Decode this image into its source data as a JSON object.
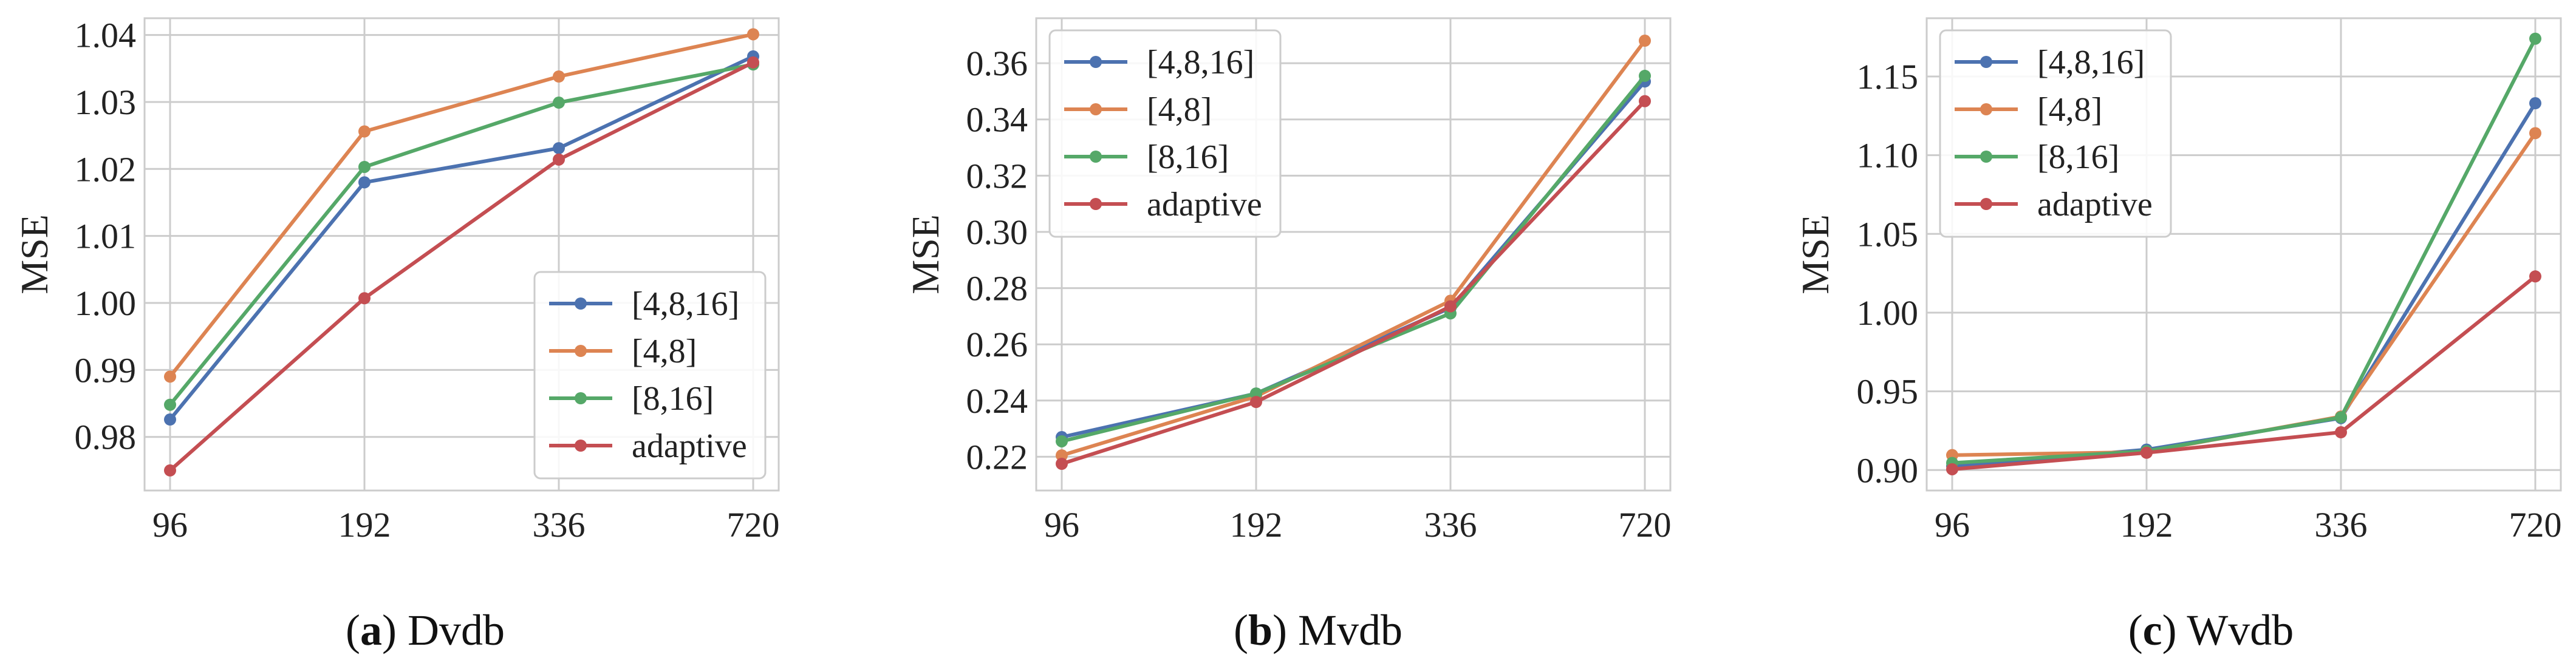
{
  "chart_data": [
    {
      "type": "line",
      "caption_letter": "a",
      "caption_name": "Dvdb",
      "ylabel": "MSE",
      "categories": [
        "96",
        "192",
        "336",
        "720"
      ],
      "ylim": [
        0.972,
        1.0425
      ],
      "yticks": [
        0.98,
        0.99,
        1.0,
        1.01,
        1.02,
        1.03,
        1.04
      ],
      "ytick_labels": [
        "0.98",
        "0.99",
        "1.00",
        "1.01",
        "1.02",
        "1.03",
        "1.04"
      ],
      "legend_position": "lower-right",
      "series": [
        {
          "name": "[4,8,16]",
          "color": "#4C72B0",
          "values": [
            0.9826,
            1.018,
            1.0231,
            1.0368
          ]
        },
        {
          "name": "[4,8]",
          "color": "#DD8452",
          "values": [
            0.989,
            1.0256,
            1.0338,
            1.0401
          ]
        },
        {
          "name": "[8,16]",
          "color": "#55A868",
          "values": [
            0.9848,
            1.0203,
            1.0299,
            1.0356
          ]
        },
        {
          "name": "adaptive",
          "color": "#C44E52",
          "values": [
            0.975,
            1.0007,
            1.0214,
            1.0359
          ]
        }
      ]
    },
    {
      "type": "line",
      "caption_letter": "b",
      "caption_name": "Mvdb",
      "ylabel": "MSE",
      "categories": [
        "96",
        "192",
        "336",
        "720"
      ],
      "ylim": [
        0.208,
        0.376
      ],
      "yticks": [
        0.22,
        0.24,
        0.26,
        0.28,
        0.3,
        0.32,
        0.34,
        0.36
      ],
      "ytick_labels": [
        "0.22",
        "0.24",
        "0.26",
        "0.28",
        "0.30",
        "0.32",
        "0.34",
        "0.36"
      ],
      "legend_position": "upper-left",
      "series": [
        {
          "name": "[4,8,16]",
          "color": "#4C72B0",
          "values": [
            0.227,
            0.2425,
            0.273,
            0.3535
          ]
        },
        {
          "name": "[4,8]",
          "color": "#DD8452",
          "values": [
            0.2205,
            0.2415,
            0.2755,
            0.368
          ]
        },
        {
          "name": "[8,16]",
          "color": "#55A868",
          "values": [
            0.2255,
            0.2425,
            0.271,
            0.3555
          ]
        },
        {
          "name": "adaptive",
          "color": "#C44E52",
          "values": [
            0.2175,
            0.2395,
            0.2735,
            0.3465
          ]
        }
      ]
    },
    {
      "type": "line",
      "caption_letter": "c",
      "caption_name": "Wvdb",
      "ylabel": "MSE",
      "categories": [
        "96",
        "192",
        "336",
        "720"
      ],
      "ylim": [
        0.887,
        1.187
      ],
      "yticks": [
        0.9,
        0.95,
        1.0,
        1.05,
        1.1,
        1.15
      ],
      "ytick_labels": [
        "0.90",
        "0.95",
        "1.00",
        "1.05",
        "1.10",
        "1.15"
      ],
      "legend_position": "upper-left",
      "series": [
        {
          "name": "[4,8,16]",
          "color": "#4C72B0",
          "values": [
            0.9025,
            0.913,
            0.933,
            1.133
          ]
        },
        {
          "name": "[4,8]",
          "color": "#DD8452",
          "values": [
            0.9095,
            0.9115,
            0.934,
            1.114
          ]
        },
        {
          "name": "[8,16]",
          "color": "#55A868",
          "values": [
            0.9045,
            0.912,
            0.9335,
            1.174
          ]
        },
        {
          "name": "adaptive",
          "color": "#C44E52",
          "values": [
            0.9005,
            0.911,
            0.924,
            1.023
          ]
        }
      ]
    }
  ]
}
